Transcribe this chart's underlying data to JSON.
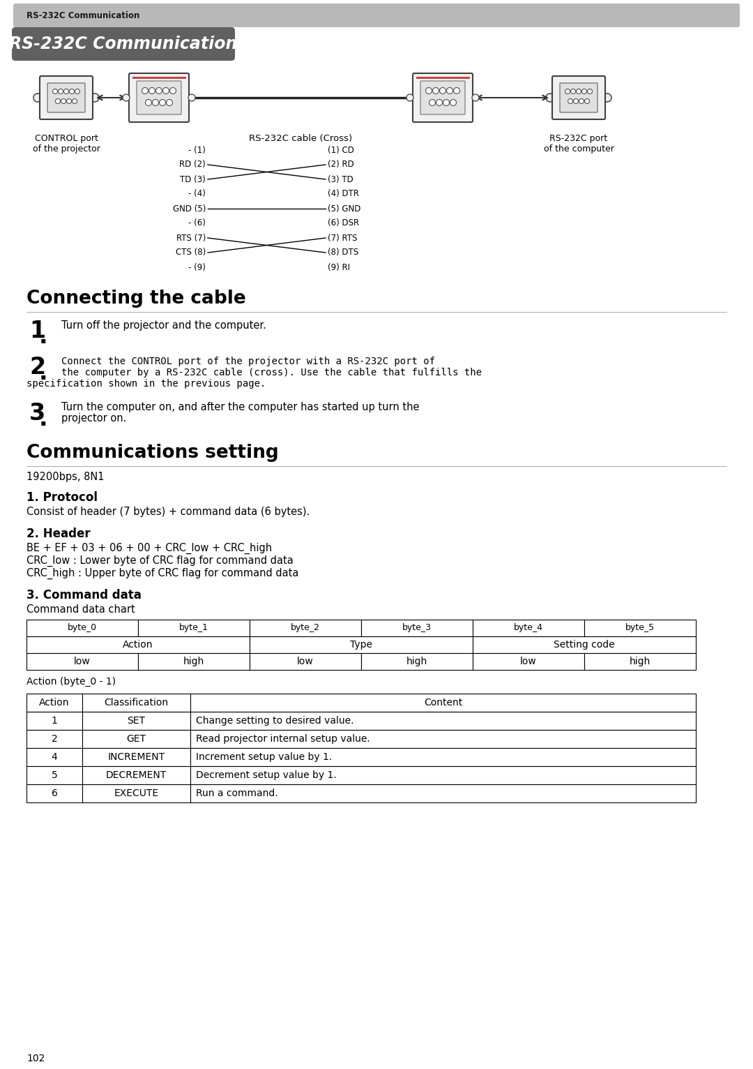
{
  "page_bg": "#ffffff",
  "header_bar_color": "#b8b8b8",
  "header_bar_text": "RS-232C Communication",
  "title_badge_bg": "#606060",
  "title_badge_text": "RS-232C Communication",
  "section1_title": "Connecting the cable",
  "section2_title": "Communications setting",
  "step1_text": "Turn off the projector and the computer.",
  "step2_line1": "Connect the CONTROL port of the projector with a RS-232C port of",
  "step2_line2": "the computer by a RS-232C cable (cross). Use the cable that fulfills the",
  "step2_line3": "specification shown in the previous page.",
  "step3_line1": "Turn the computer on, and after the computer has started up turn the",
  "step3_line2": "projector on.",
  "comm_setting_bps": "19200bps, 8N1",
  "protocol_title": "1. Protocol",
  "protocol_text": "Consist of header (7 bytes) + command data (6 bytes).",
  "header_title": "2. Header",
  "header_line1": "BE + EF + 03 + 06 + 00 + CRC_low + CRC_high",
  "header_line2": "CRC_low : Lower byte of CRC flag for command data",
  "header_line3": "CRC_high : Upper byte of CRC flag for command data",
  "cmd_data_title": "3. Command data",
  "cmd_data_subtitle": "Command data chart",
  "byte_table_headers": [
    "byte_0",
    "byte_1",
    "byte_2",
    "byte_3",
    "byte_4",
    "byte_5"
  ],
  "action_table_label": "Action (byte_0 - 1)",
  "action_table_headers": [
    "Action",
    "Classification",
    "Content"
  ],
  "action_table_rows": [
    [
      "1",
      "SET",
      "Change setting to desired value."
    ],
    [
      "2",
      "GET",
      "Read projector internal setup value."
    ],
    [
      "4",
      "INCREMENT",
      "Increment setup value by 1."
    ],
    [
      "5",
      "DECREMENT",
      "Decrement setup value by 1."
    ],
    [
      "6",
      "EXECUTE",
      "Run a command."
    ]
  ],
  "page_number": "102",
  "left_pins": [
    "- (1)",
    "RD (2)",
    "TD (3)",
    "- (4)",
    "GND (5)",
    "- (6)",
    "RTS (7)",
    "CTS (8)",
    "- (9)"
  ],
  "right_pins": [
    "(1) CD",
    "(2) RD",
    "(3) TD",
    "(4) DTR",
    "(5) GND",
    "(6) DSR",
    "(7) RTS",
    "(8) DTS",
    "(9) RI"
  ]
}
